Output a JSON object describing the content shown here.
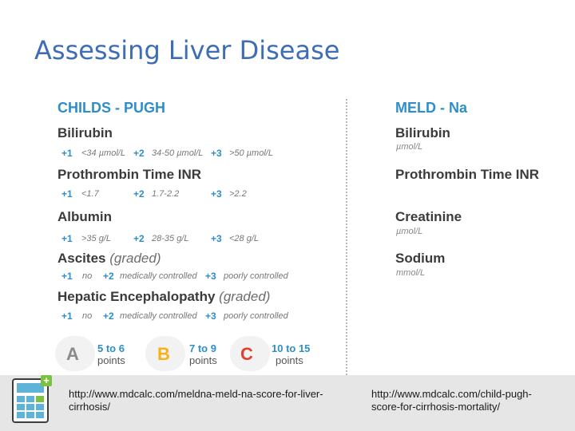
{
  "slide": {
    "title": "Assessing Liver Disease"
  },
  "childs_pugh": {
    "heading": "CHILDS - PUGH",
    "items": [
      {
        "name": "Bilirubin",
        "graded": "",
        "opts": [
          {
            "pt": "+1",
            "val": "<34 µmol/L"
          },
          {
            "pt": "+2",
            "val": "34-50 µmol/L"
          },
          {
            "pt": "+3",
            "val": ">50 µmol/L"
          }
        ]
      },
      {
        "name": "Prothrombin Time INR",
        "graded": "",
        "opts": [
          {
            "pt": "+1",
            "val": "<1.7"
          },
          {
            "pt": "+2",
            "val": "1.7-2.2"
          },
          {
            "pt": "+3",
            "val": ">2.2"
          }
        ]
      },
      {
        "name": "Albumin",
        "graded": "",
        "opts": [
          {
            "pt": "+1",
            "val": ">35 g/L"
          },
          {
            "pt": "+2",
            "val": "28-35 g/L"
          },
          {
            "pt": "+3",
            "val": "<28 g/L"
          }
        ]
      },
      {
        "name": "Ascites",
        "graded": "(graded)",
        "opts": [
          {
            "pt": "+1",
            "val": "no"
          },
          {
            "pt": "+2",
            "val": "medically controlled"
          },
          {
            "pt": "+3",
            "val": "poorly controlled"
          }
        ]
      },
      {
        "name": "Hepatic Encephalopathy",
        "graded": "(graded)",
        "opts": [
          {
            "pt": "+1",
            "val": "no"
          },
          {
            "pt": "+2",
            "val": "medically controlled"
          },
          {
            "pt": "+3",
            "val": "poorly controlled"
          }
        ]
      }
    ],
    "grades": [
      {
        "letter": "A",
        "range": "5 to 6",
        "unit": "points",
        "color": "#8a8a8a"
      },
      {
        "letter": "B",
        "range": "7 to 9",
        "unit": "points",
        "color": "#f5b21b"
      },
      {
        "letter": "C",
        "range": "10 to 15",
        "unit": "points",
        "color": "#e2402f"
      }
    ]
  },
  "meld_na": {
    "heading": "MELD - Na",
    "items": [
      {
        "name": "Bilirubin",
        "unit": "µmol/L"
      },
      {
        "name": "Prothrombin Time INR",
        "unit": ""
      },
      {
        "name": "Creatinine",
        "unit": "µmol/L"
      },
      {
        "name": "Sodium",
        "unit": "mmol/L"
      }
    ]
  },
  "footer": {
    "icon": "calculator-icon",
    "link_left": "http://www.mdcalc.com/meldna-meld-na-score-for-liver-cirrhosis/",
    "link_right": "http://www.mdcalc.com/child-pugh-score-for-cirrhosis-mortality/"
  }
}
